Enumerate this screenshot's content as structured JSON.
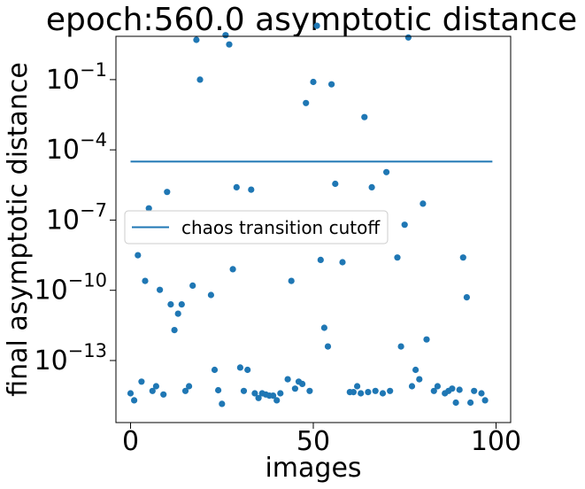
{
  "chart_data": {
    "type": "scatter",
    "title": "epoch:560.0 asymptotic distance",
    "xlabel": "images",
    "ylabel": "final asymptotic distance",
    "xlim": [
      -4,
      104
    ],
    "ylim_log10": [
      -15.65,
      0.85
    ],
    "y_scale": "log",
    "grid": false,
    "x_ticks": [
      0,
      50,
      100
    ],
    "x_tick_labels": [
      "0",
      "50",
      "100"
    ],
    "y_ticks_log10": [
      -13,
      -10,
      -7,
      -4,
      -1
    ],
    "y_tick_labels": [
      {
        "base": "10",
        "exp": "−13"
      },
      {
        "base": "10",
        "exp": "−10"
      },
      {
        "base": "10",
        "exp": "−7"
      },
      {
        "base": "10",
        "exp": "−4"
      },
      {
        "base": "10",
        "exp": "−1"
      }
    ],
    "legend": {
      "position": "center-left",
      "entries": [
        {
          "label": "chaos transition cutoff",
          "marker": "line"
        }
      ]
    },
    "colors": {
      "points": "#1f77b4",
      "cutoff": "#1f77b4"
    },
    "cutoff_line": {
      "name": "chaos transition cutoff",
      "y_log10": -4.5,
      "x_range": [
        0,
        99
      ]
    },
    "points_log10": [
      [
        0,
        -14.4
      ],
      [
        1,
        -14.7
      ],
      [
        2,
        -8.5
      ],
      [
        3,
        -13.9
      ],
      [
        4,
        -9.6
      ],
      [
        5,
        -6.5
      ],
      [
        6,
        -14.3
      ],
      [
        7,
        -14.1
      ],
      [
        8,
        -9.98
      ],
      [
        9,
        -14.45
      ],
      [
        10,
        -5.8
      ],
      [
        11,
        -10.6
      ],
      [
        12,
        -11.7
      ],
      [
        13,
        -11.0
      ],
      [
        14,
        -10.6
      ],
      [
        15,
        -14.3
      ],
      [
        16,
        -14.1
      ],
      [
        17,
        -9.8
      ],
      [
        18,
        0.7
      ],
      [
        19,
        -1.0
      ],
      [
        22,
        -10.2
      ],
      [
        23,
        -13.4
      ],
      [
        24,
        -14.27
      ],
      [
        25,
        -14.85
      ],
      [
        26,
        0.9
      ],
      [
        27,
        0.5
      ],
      [
        28,
        -9.1
      ],
      [
        29,
        -5.6
      ],
      [
        30,
        -13.3
      ],
      [
        31,
        -14.3
      ],
      [
        32,
        -13.4
      ],
      [
        33,
        -5.7
      ],
      [
        34,
        -14.4
      ],
      [
        35,
        -14.6
      ],
      [
        36,
        -14.4
      ],
      [
        37,
        -14.45
      ],
      [
        38,
        -14.5
      ],
      [
        39,
        -14.5
      ],
      [
        40,
        -14.7
      ],
      [
        41,
        -14.4
      ],
      [
        43,
        -13.8
      ],
      [
        44,
        -9.6
      ],
      [
        45,
        -14.2
      ],
      [
        46,
        -13.9
      ],
      [
        47,
        -14.0
      ],
      [
        48,
        -2.0
      ],
      [
        49,
        -14.3
      ],
      [
        50,
        -1.1
      ],
      [
        51,
        1.3
      ],
      [
        52,
        -8.7
      ],
      [
        53,
        -11.6
      ],
      [
        54,
        -12.4
      ],
      [
        55,
        -1.2
      ],
      [
        56,
        -5.45
      ],
      [
        58,
        -8.8
      ],
      [
        60,
        -14.35
      ],
      [
        61,
        -14.35
      ],
      [
        62,
        -14.1
      ],
      [
        63,
        -14.4
      ],
      [
        64,
        -2.6
      ],
      [
        65,
        -14.35
      ],
      [
        66,
        -5.6
      ],
      [
        67,
        -14.3
      ],
      [
        69,
        -14.4
      ],
      [
        70,
        -4.95
      ],
      [
        71,
        -14.3
      ],
      [
        73,
        -8.6
      ],
      [
        74,
        -12.4
      ],
      [
        75,
        -7.2
      ],
      [
        76,
        0.8
      ],
      [
        77,
        -14.1
      ],
      [
        78,
        -13.4
      ],
      [
        79,
        -13.8
      ],
      [
        80,
        -6.3
      ],
      [
        81,
        -12.1
      ],
      [
        83,
        -14.3
      ],
      [
        84,
        -14.1
      ],
      [
        86,
        -14.4
      ],
      [
        87,
        -14.3
      ],
      [
        88,
        -14.2
      ],
      [
        89,
        -14.8
      ],
      [
        90,
        -14.25
      ],
      [
        91,
        -8.6
      ],
      [
        92,
        -10.3
      ],
      [
        93,
        -14.8
      ],
      [
        94,
        -14.3
      ],
      [
        96,
        -14.4
      ],
      [
        97,
        -14.7
      ]
    ]
  }
}
